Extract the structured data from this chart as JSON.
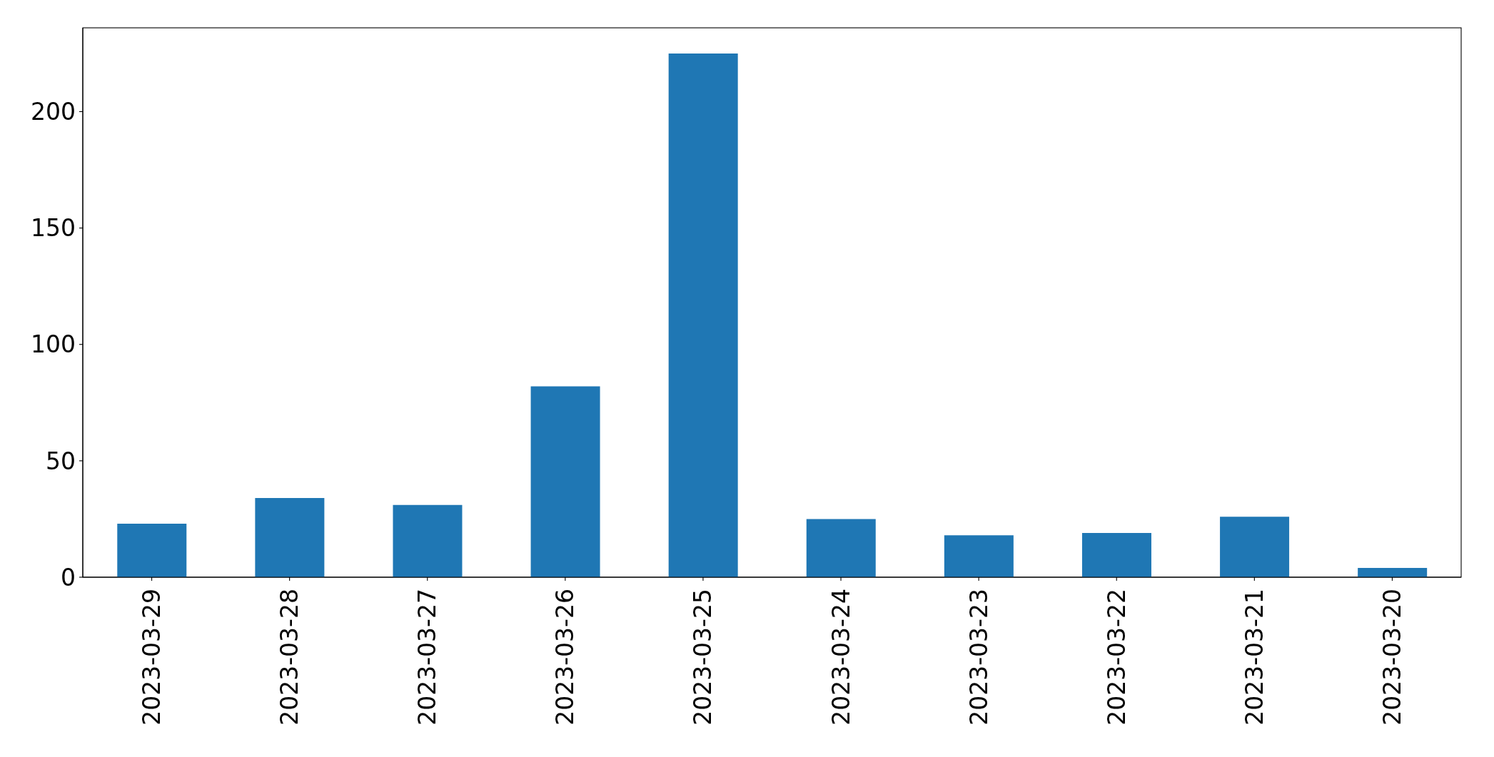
{
  "chart_data": {
    "type": "bar",
    "categories": [
      "2023-03-29",
      "2023-03-28",
      "2023-03-27",
      "2023-03-26",
      "2023-03-25",
      "2023-03-24",
      "2023-03-23",
      "2023-03-22",
      "2023-03-21",
      "2023-03-20"
    ],
    "values": [
      23,
      34,
      31,
      82,
      225,
      25,
      18,
      19,
      26,
      4
    ],
    "color": "#1f77b4",
    "ylim": [
      0,
      236
    ],
    "yticks": [
      0,
      50,
      100,
      150,
      200
    ]
  }
}
